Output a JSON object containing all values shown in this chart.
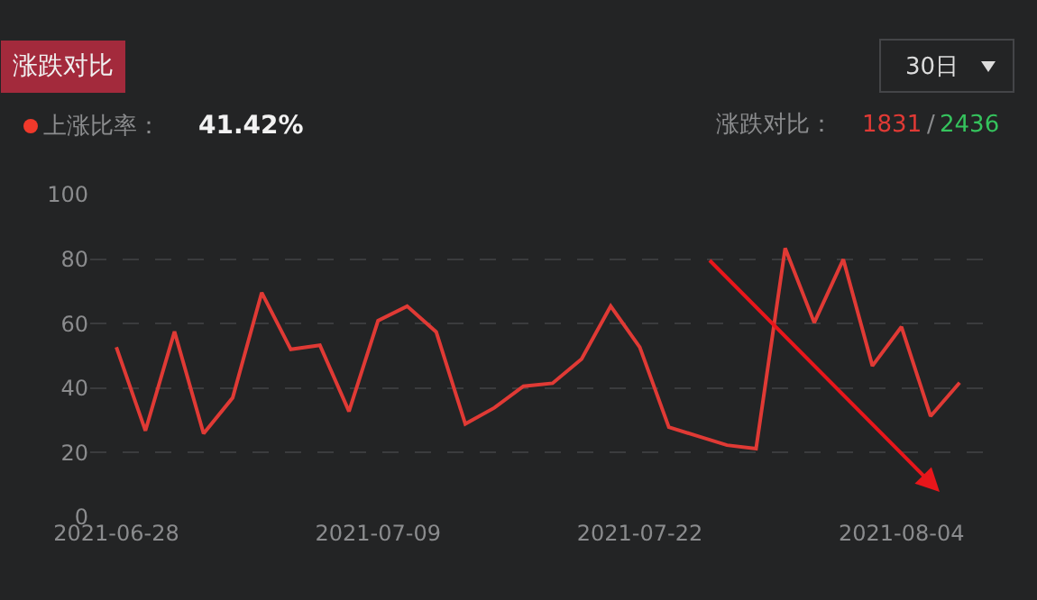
{
  "chart_data": {
    "type": "line",
    "title": "涨跌对比",
    "categories": [
      "2021-06-28",
      null,
      null,
      null,
      null,
      null,
      null,
      null,
      null,
      "2021-07-09",
      null,
      null,
      null,
      null,
      null,
      null,
      null,
      null,
      "2021-07-22",
      null,
      null,
      null,
      null,
      null,
      null,
      null,
      null,
      "2021-08-04",
      null,
      null
    ],
    "series": [
      {
        "color": "#e03a35",
        "values": [
          52.7,
          26.8,
          57.5,
          25.9,
          37,
          69.6,
          52,
          53.3,
          32.8,
          60.9,
          65.4,
          57.4,
          28.9,
          33.9,
          40.6,
          41.5,
          49,
          65.4,
          52.7,
          27.9,
          25.1,
          22.3,
          21.2,
          83.4,
          60.3,
          79.9,
          46.9,
          59,
          31.3,
          41.7
        ]
      }
    ],
    "ylim": [
      0,
      100
    ],
    "yticks": [
      0,
      20,
      40,
      60,
      80,
      100
    ],
    "grid": "y",
    "marker": "none",
    "line_style": "solid",
    "legend": false,
    "annotations": [
      "上涨比率：",
      "41.42%",
      "涨跌对比：",
      "1831",
      "/",
      "2436",
      "30日"
    ]
  }
}
